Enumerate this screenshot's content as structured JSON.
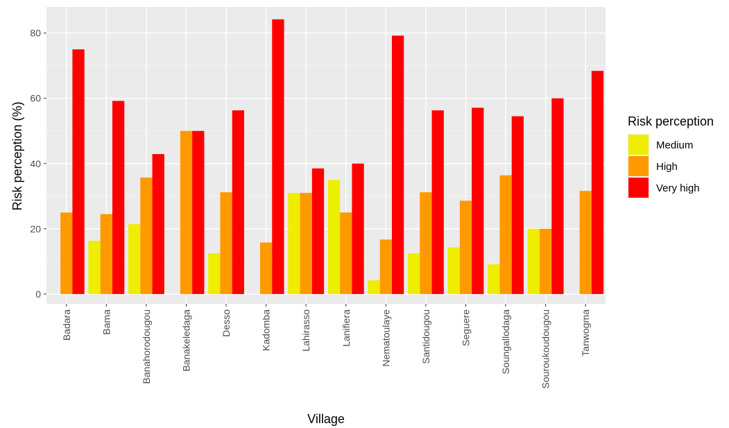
{
  "chart_data": {
    "type": "bar",
    "xlabel": "Village",
    "ylabel": "Risk perception (%)",
    "ylim": [
      -3,
      88
    ],
    "yticks": [
      0,
      20,
      40,
      60,
      80
    ],
    "grid": true,
    "legend": {
      "title": "Risk perception",
      "position": "right"
    },
    "categories": [
      "Badara",
      "Bama",
      "Banahorodougou",
      "Banakeledaga",
      "Desso",
      "Kadomba",
      "Lahirasso",
      "Lanifiera",
      "Nematoulaye",
      "Santidougou",
      "Seguere",
      "Soungallodaga",
      "Souroukoudougou",
      "Tanwogma"
    ],
    "series": [
      {
        "name": "Medium",
        "color": "#EEEE00",
        "values": [
          0,
          16.3,
          21.4,
          0,
          12.5,
          0,
          31,
          35,
          4.2,
          12.5,
          14.3,
          9.1,
          20,
          0
        ]
      },
      {
        "name": "High",
        "color": "#FF9900",
        "values": [
          25,
          24.5,
          35.7,
          50,
          31.2,
          15.8,
          31,
          25,
          16.7,
          31.2,
          28.6,
          36.4,
          20,
          31.6
        ]
      },
      {
        "name": "Very high",
        "color": "#FF0000",
        "values": [
          75,
          59.2,
          42.9,
          50,
          56.3,
          84.2,
          38.5,
          40,
          79.2,
          56.3,
          57.1,
          54.5,
          60,
          68.4
        ]
      }
    ]
  }
}
